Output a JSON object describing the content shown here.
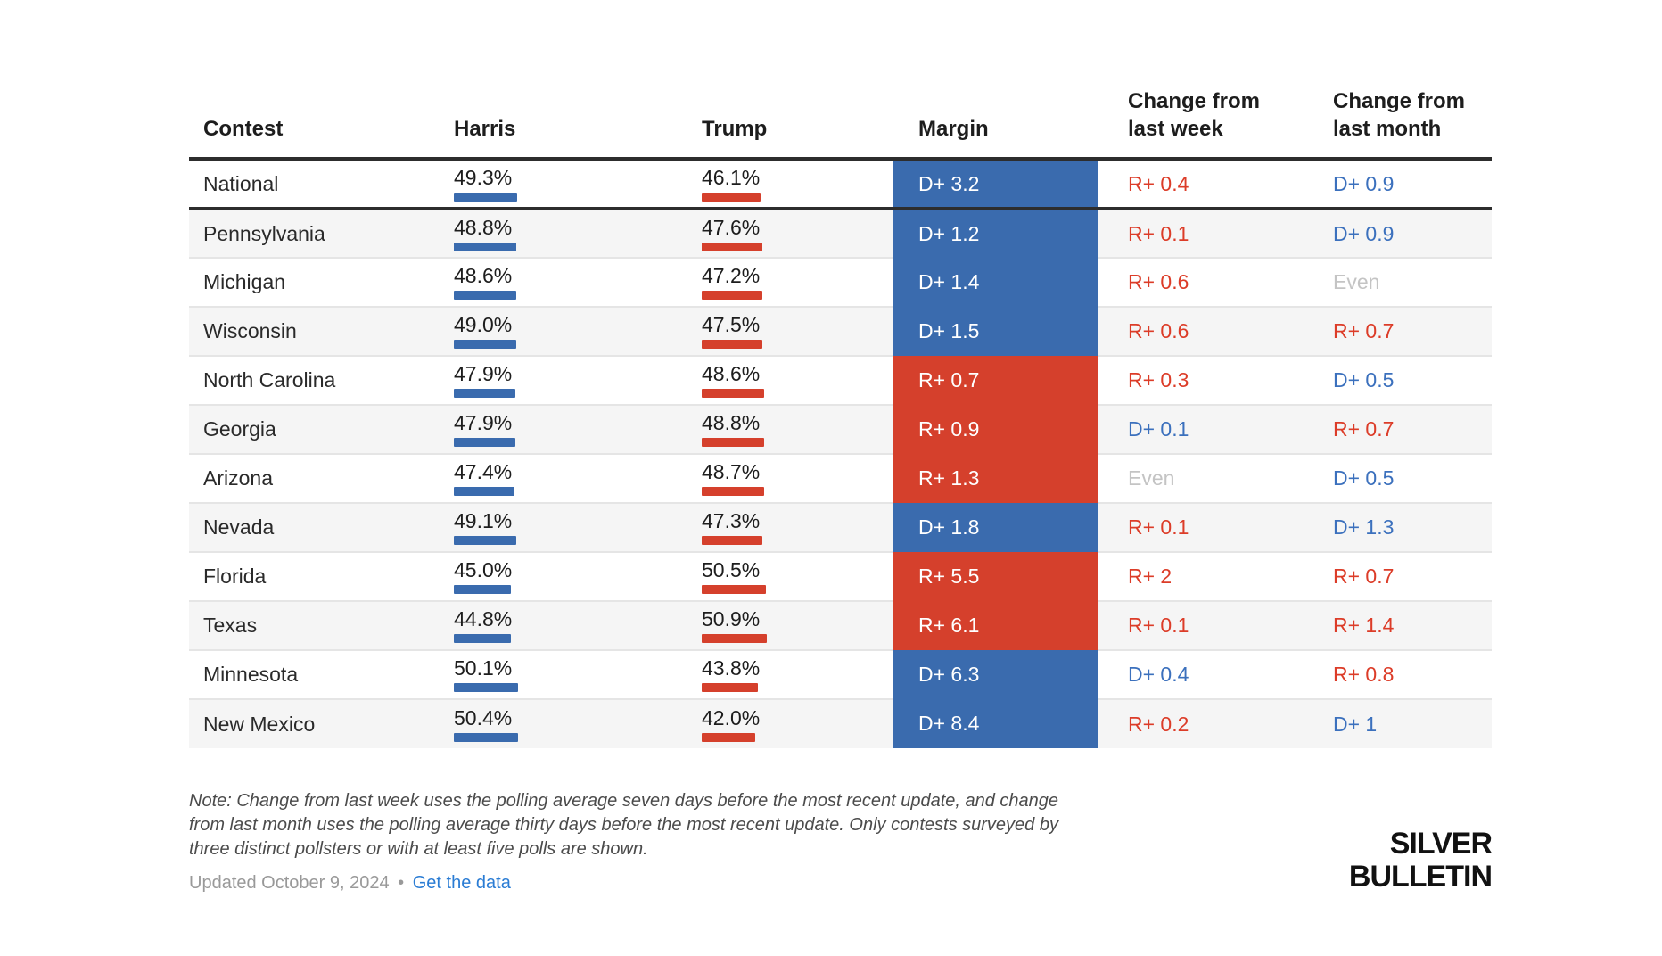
{
  "chart_data": {
    "type": "table",
    "columns": [
      "Contest",
      "Harris",
      "Trump",
      "Margin",
      "Change from last week",
      "Change from last month"
    ],
    "rows": [
      {
        "contest": "National",
        "harris_pct": 49.3,
        "trump_pct": 46.1,
        "margin": "D+ 3.2",
        "change_week": "R+ 0.4",
        "change_month": "D+ 0.9"
      },
      {
        "contest": "Pennsylvania",
        "harris_pct": 48.8,
        "trump_pct": 47.6,
        "margin": "D+ 1.2",
        "change_week": "R+ 0.1",
        "change_month": "D+ 0.9"
      },
      {
        "contest": "Michigan",
        "harris_pct": 48.6,
        "trump_pct": 47.2,
        "margin": "D+ 1.4",
        "change_week": "R+ 0.6",
        "change_month": "Even"
      },
      {
        "contest": "Wisconsin",
        "harris_pct": 49.0,
        "trump_pct": 47.5,
        "margin": "D+ 1.5",
        "change_week": "R+ 0.6",
        "change_month": "R+ 0.7"
      },
      {
        "contest": "North Carolina",
        "harris_pct": 47.9,
        "trump_pct": 48.6,
        "margin": "R+ 0.7",
        "change_week": "R+ 0.3",
        "change_month": "D+ 0.5"
      },
      {
        "contest": "Georgia",
        "harris_pct": 47.9,
        "trump_pct": 48.8,
        "margin": "R+ 0.9",
        "change_week": "D+ 0.1",
        "change_month": "R+ 0.7"
      },
      {
        "contest": "Arizona",
        "harris_pct": 47.4,
        "trump_pct": 48.7,
        "margin": "R+ 1.3",
        "change_week": "Even",
        "change_month": "D+ 0.5"
      },
      {
        "contest": "Nevada",
        "harris_pct": 49.1,
        "trump_pct": 47.3,
        "margin": "D+ 1.8",
        "change_week": "R+ 0.1",
        "change_month": "D+ 1.3"
      },
      {
        "contest": "Florida",
        "harris_pct": 45.0,
        "trump_pct": 50.5,
        "margin": "R+ 5.5",
        "change_week": "R+ 2",
        "change_month": "R+ 0.7"
      },
      {
        "contest": "Texas",
        "harris_pct": 44.8,
        "trump_pct": 50.9,
        "margin": "R+ 6.1",
        "change_week": "R+ 0.1",
        "change_month": "R+ 1.4"
      },
      {
        "contest": "Minnesota",
        "harris_pct": 50.1,
        "trump_pct": 43.8,
        "margin": "D+ 6.3",
        "change_week": "D+ 0.4",
        "change_month": "R+ 0.8"
      },
      {
        "contest": "New Mexico",
        "harris_pct": 50.4,
        "trump_pct": 42.0,
        "margin": "D+ 8.4",
        "change_week": "R+ 0.2",
        "change_month": "D+ 1"
      }
    ],
    "layout_hints": {
      "margin_cell_fill_by_party": true,
      "alternating_row_shading": true
    }
  },
  "footer": {
    "note": "Note: Change from last week uses the polling average seven days before the most recent update, and change from last month uses the polling average thirty days before the most recent update. Only contests surveyed by three distinct pollsters or with at least five polls are shown.",
    "updated": "Updated October 9, 2024",
    "separator": "•",
    "link_label": "Get the data"
  },
  "logo": {
    "line1": "SILVER",
    "line2": "BULLETIN"
  },
  "colors": {
    "dem_blue": "#3a6bae",
    "rep_red": "#d5402c",
    "dem_text": "#3b70bd",
    "rep_text": "#dc3c28",
    "even_gray": "#c4c4c4",
    "link_blue": "#2a7cd4"
  }
}
